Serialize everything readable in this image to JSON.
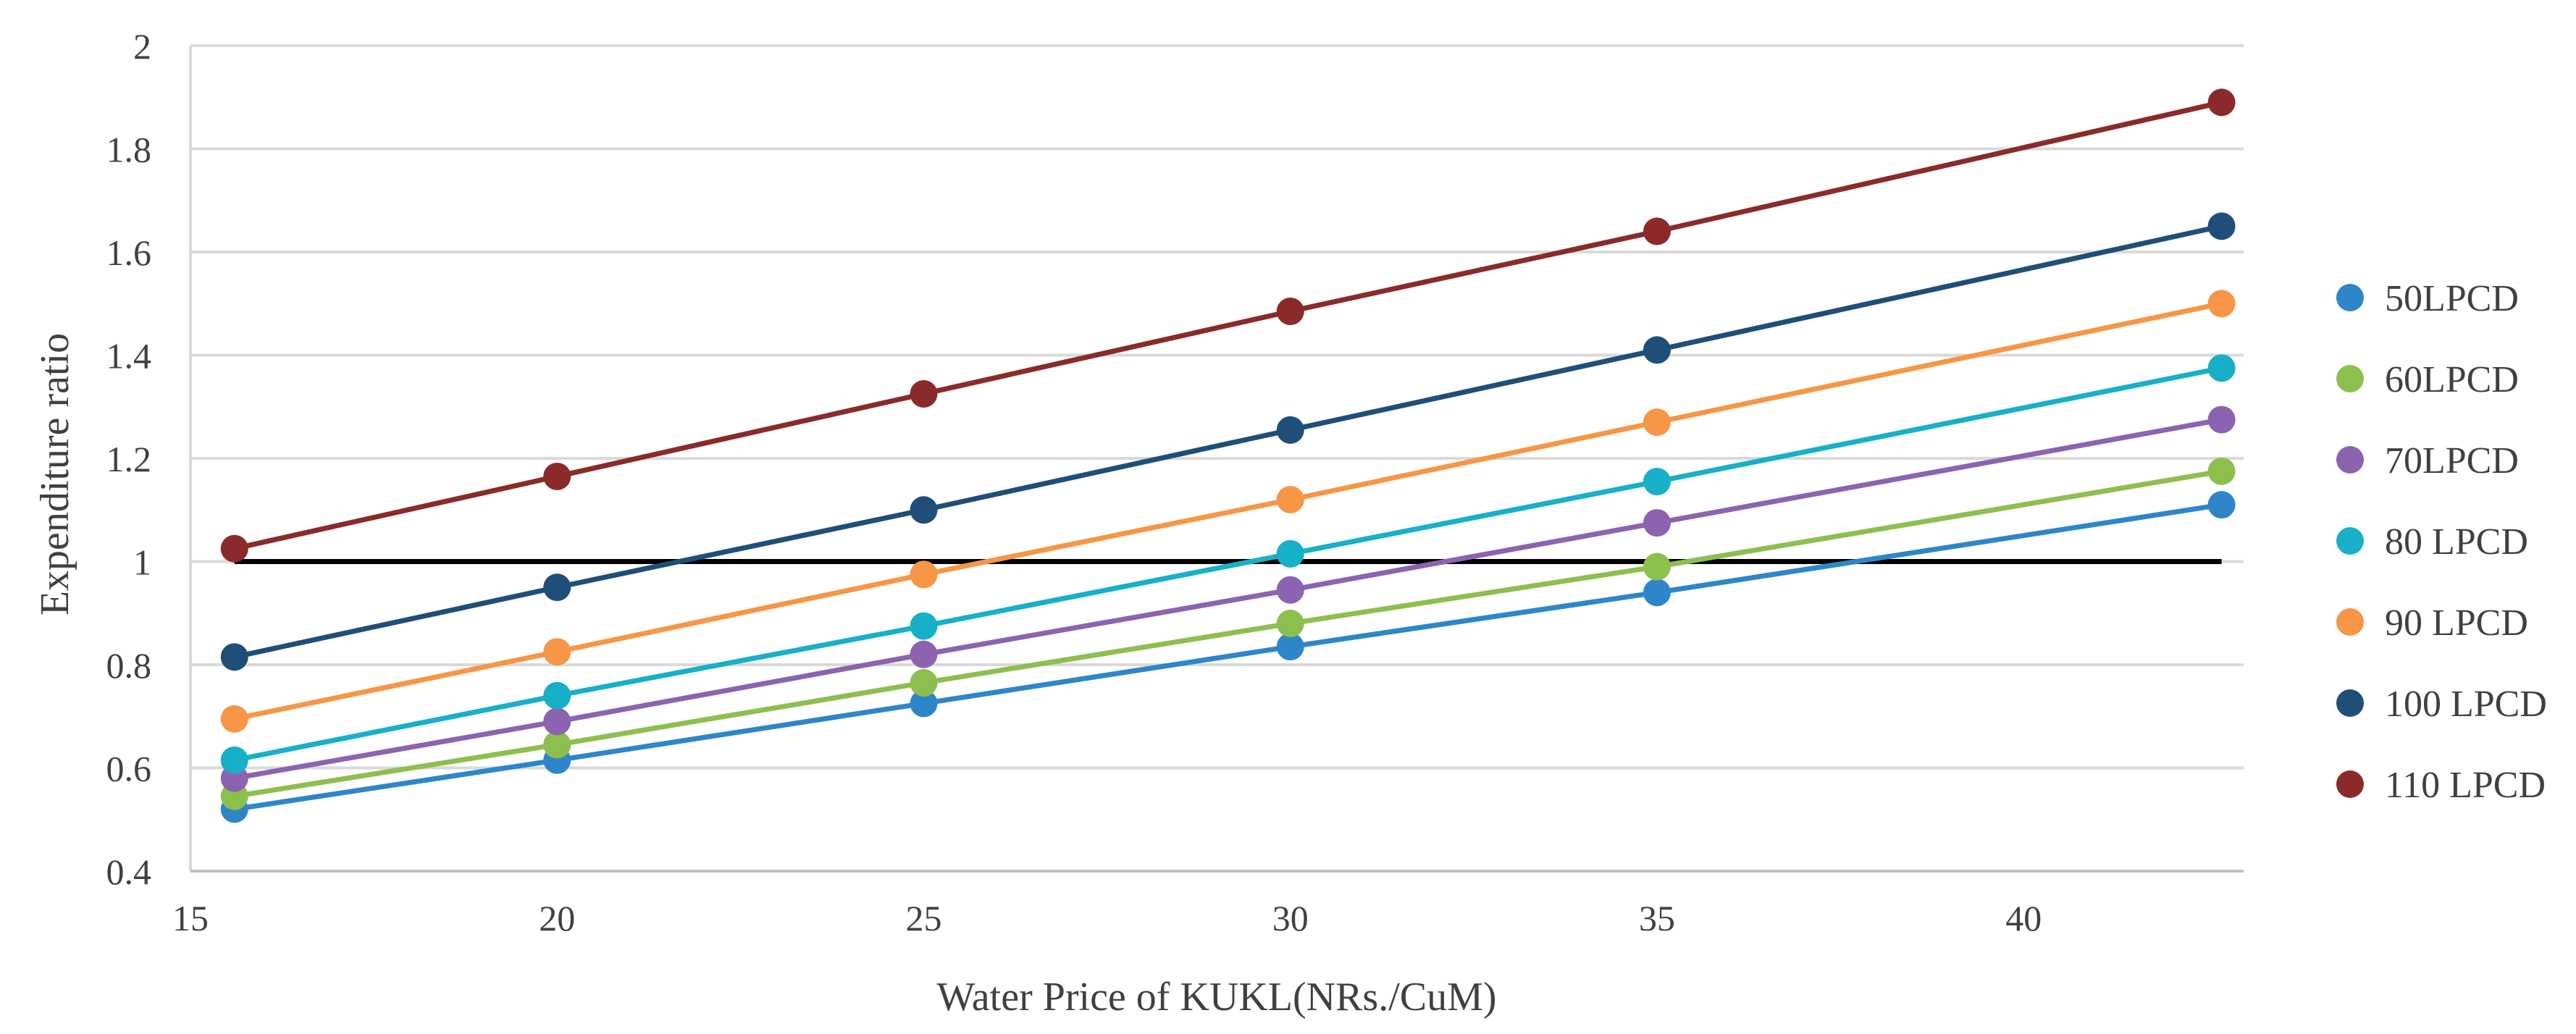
{
  "chart_data": {
    "type": "line",
    "title": "",
    "xlabel": "Water Price of KUKL(NRs./CuM)",
    "ylabel": "Expenditure ratio",
    "xlim": [
      15,
      43
    ],
    "ylim": [
      0.4,
      2
    ],
    "x_ticks": [
      15,
      20,
      25,
      30,
      35,
      40
    ],
    "x_tick_labels": [
      "15",
      "20",
      "25",
      "30",
      "35",
      "40"
    ],
    "y_ticks": [
      0.4,
      0.6,
      0.8,
      1.0,
      1.2,
      1.4,
      1.6,
      1.8,
      2.0
    ],
    "y_tick_labels": [
      "0.4",
      "0.6",
      "0.8",
      "1",
      "1.2",
      "1.4",
      "1.6",
      "1.8",
      "2"
    ],
    "grid": "horizontal",
    "legend_position": "right",
    "x": [
      15.6,
      20,
      25,
      30,
      35,
      42.7
    ],
    "series": [
      {
        "name": "50LPCD",
        "color": "#2E86C8",
        "values": [
          0.52,
          0.615,
          0.725,
          0.835,
          0.94,
          1.11
        ]
      },
      {
        "name": "60LPCD",
        "color": "#8DBF4E",
        "values": [
          0.545,
          0.645,
          0.765,
          0.88,
          0.99,
          1.175
        ]
      },
      {
        "name": "70LPCD",
        "color": "#8C63B0",
        "values": [
          0.58,
          0.69,
          0.82,
          0.945,
          1.075,
          1.275
        ]
      },
      {
        "name": "80 LPCD",
        "color": "#17B0C8",
        "values": [
          0.615,
          0.74,
          0.875,
          1.015,
          1.155,
          1.375
        ]
      },
      {
        "name": "90 LPCD",
        "color": "#F79646",
        "values": [
          0.695,
          0.825,
          0.975,
          1.12,
          1.27,
          1.5
        ]
      },
      {
        "name": "100 LPCD",
        "color": "#1F4E79",
        "values": [
          0.815,
          0.95,
          1.1,
          1.255,
          1.41,
          1.65
        ]
      },
      {
        "name": "110 LPCD",
        "color": "#8B2A2A",
        "values": [
          1.025,
          1.165,
          1.325,
          1.485,
          1.64,
          1.89
        ]
      }
    ],
    "reference_line": {
      "y": 1.0,
      "x_range": [
        15.6,
        42.7
      ],
      "color": "#000000"
    }
  }
}
